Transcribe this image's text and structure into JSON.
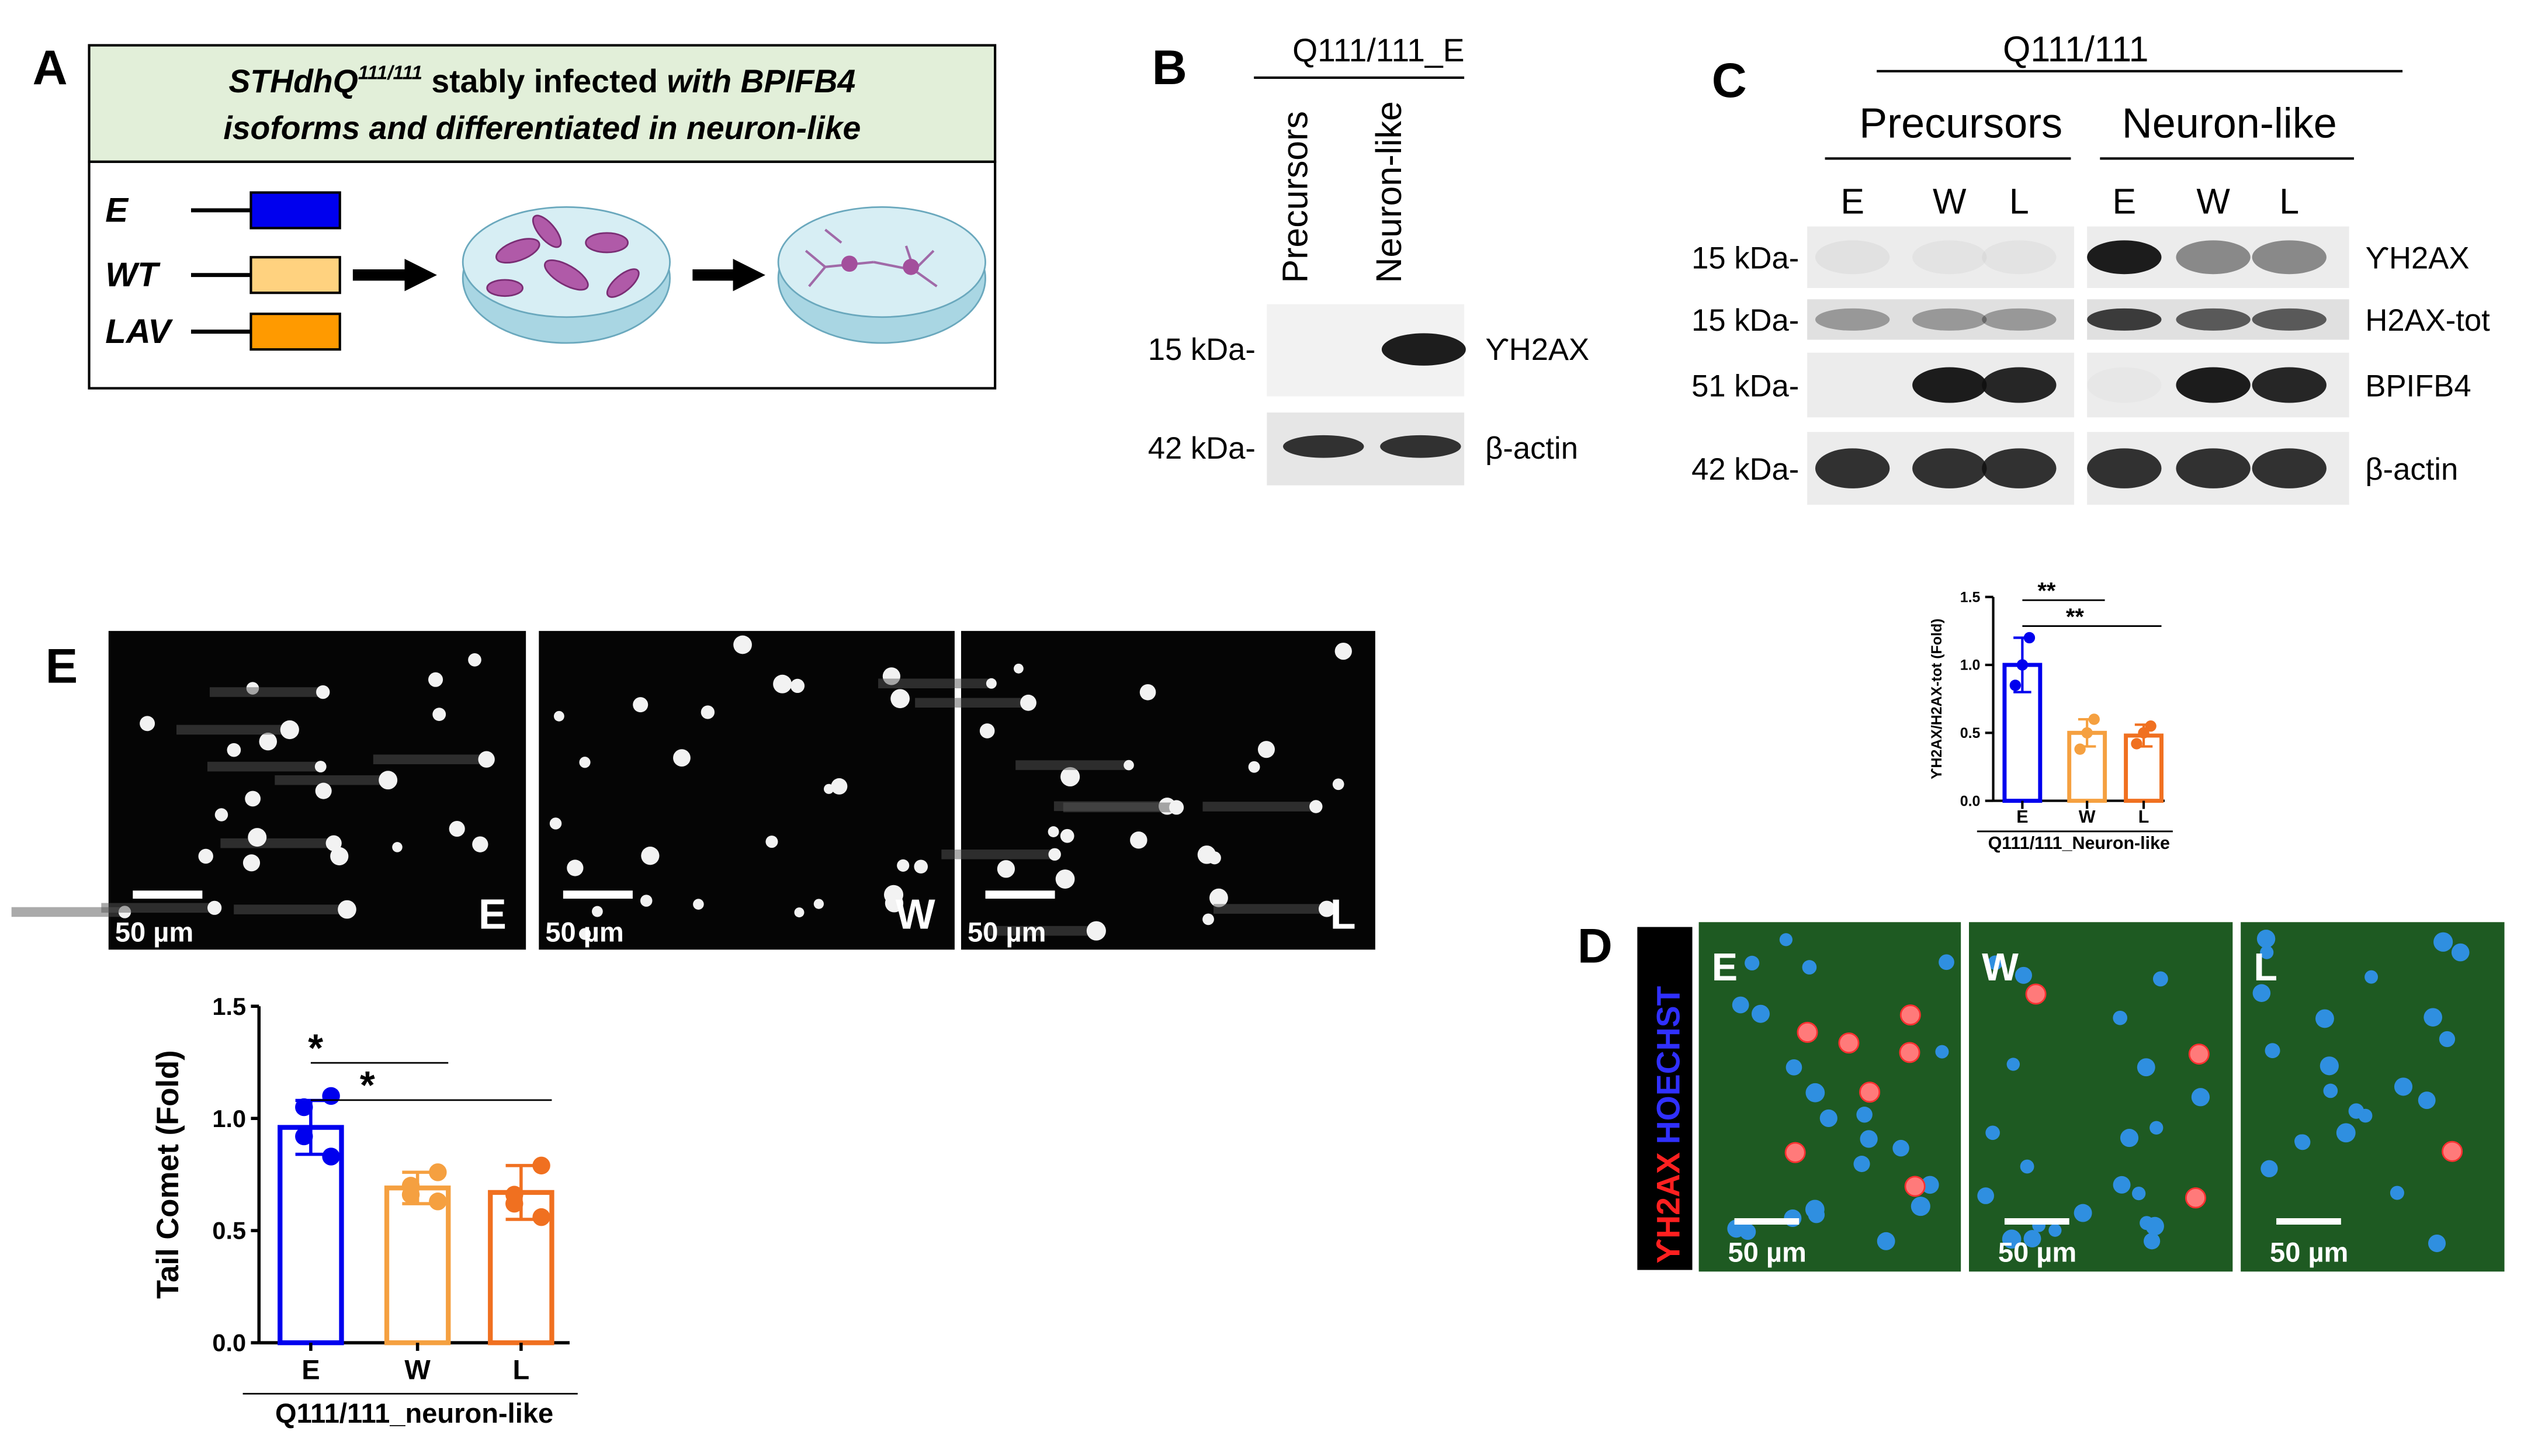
{
  "panel_a": {
    "label": "A",
    "title": {
      "gene": "STHdhQ",
      "superscript": "111/111",
      "middle": " stably infected ",
      "emph": "with BPIFB4",
      "line2": "isoforms and differentiated in neuron-like"
    },
    "constructs": [
      {
        "name": "E",
        "color": "#0000ee"
      },
      {
        "name": "WT",
        "color": "#ffd27f"
      },
      {
        "name": "LAV",
        "color": "#ff9a00"
      }
    ]
  },
  "panel_b": {
    "label": "B",
    "header": "Q111/111_E",
    "lanes": [
      "Precursors",
      "Neuron-like"
    ],
    "markers": [
      "15 kDa-",
      "42 kDa-"
    ],
    "proteins": [
      "ϒH2AX",
      "β-actin"
    ]
  },
  "panel_c": {
    "label": "C",
    "header": "Q111/111",
    "groups": [
      "Precursors",
      "Neuron-like"
    ],
    "lanes": [
      "E",
      "W",
      "L",
      "E",
      "W",
      "L"
    ],
    "markers": [
      "15 kDa-",
      "15 kDa-",
      "51 kDa-",
      "42 kDa-"
    ],
    "proteins": [
      "ϒH2AX",
      "H2AX-tot",
      "BPIFB4",
      "β-actin"
    ],
    "chart": {
      "type": "bar",
      "y_label": "ϒH2AX/H2AX-tot (Fold)",
      "x_label": "Q111/111_Neuron-like",
      "categories": [
        "E",
        "W",
        "L"
      ],
      "values": [
        1.0,
        0.5,
        0.48
      ],
      "errors": [
        0.2,
        0.1,
        0.08
      ],
      "points": [
        [
          1.2,
          1.0,
          0.85
        ],
        [
          0.6,
          0.5,
          0.38
        ],
        [
          0.55,
          0.5,
          0.42
        ]
      ],
      "colors": [
        "#0000ee",
        "#f5a040",
        "#f07020"
      ],
      "ylim": [
        0,
        1.5
      ],
      "yticks": [
        {
          "value": 0,
          "label": "0.0"
        },
        {
          "value": 0.5,
          "label": "0.5"
        },
        {
          "value": 1,
          "label": "1.0"
        },
        {
          "value": 1.5,
          "label": "1.5"
        }
      ],
      "significance": [
        "**",
        "**"
      ]
    }
  },
  "panel_d": {
    "label": "D",
    "stains": [
      "ϒH2AX",
      "HOECHST"
    ],
    "images": [
      "E",
      "W",
      "L"
    ],
    "scale": "50 µm"
  },
  "panel_e": {
    "label": "E",
    "images": [
      "E",
      "W",
      "L"
    ],
    "scale": "50 µm",
    "chart": {
      "type": "bar",
      "y_label": "Tail Comet (Fold)",
      "x_label": "Q111/111_neuron-like",
      "categories": [
        "E",
        "W",
        "L"
      ],
      "values": [
        0.96,
        0.69,
        0.67
      ],
      "errors": [
        0.12,
        0.07,
        0.12
      ],
      "points": [
        [
          1.1,
          1.05,
          0.92,
          0.83
        ],
        [
          0.76,
          0.7,
          0.66,
          0.63
        ],
        [
          0.79,
          0.66,
          0.62,
          0.56
        ]
      ],
      "colors": [
        "#0000ee",
        "#f5a040",
        "#f07020"
      ],
      "ylim": [
        0,
        1.5
      ],
      "yticks": [
        {
          "value": 0,
          "label": "0.0"
        },
        {
          "value": 0.5,
          "label": "0.5"
        },
        {
          "value": 1,
          "label": "1.0"
        },
        {
          "value": 1.5,
          "label": "1.5"
        }
      ],
      "significance": [
        "*",
        "*"
      ]
    }
  }
}
